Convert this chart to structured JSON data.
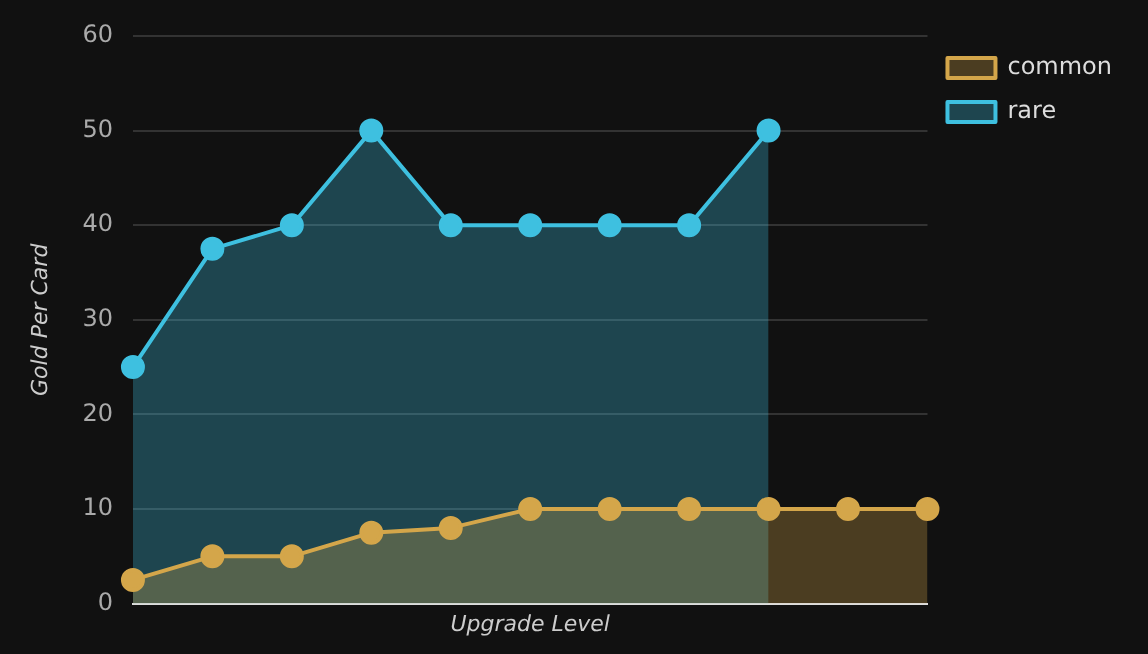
{
  "chart_data": {
    "type": "area",
    "xlabel": "Upgrade Level",
    "ylabel": "Gold Per Card",
    "categories": [
      null,
      null,
      null,
      null,
      null,
      null,
      null,
      null,
      null,
      null,
      null
    ],
    "series": [
      {
        "name": "common",
        "color": "#d4a64a",
        "values": [
          2.5,
          5,
          5,
          7.5,
          8,
          10,
          10,
          10,
          10,
          10,
          10
        ]
      },
      {
        "name": "rare",
        "color": "#3ec0e0",
        "values": [
          25,
          37.5,
          40,
          50,
          40,
          40,
          40,
          40,
          50,
          null,
          null
        ]
      }
    ],
    "ylim": [
      0,
      60
    ],
    "yticks": [
      0,
      10,
      20,
      30,
      40,
      50,
      60
    ],
    "grid": "y",
    "legend": "top right",
    "marker": "circle",
    "tick_labels": "y"
  }
}
